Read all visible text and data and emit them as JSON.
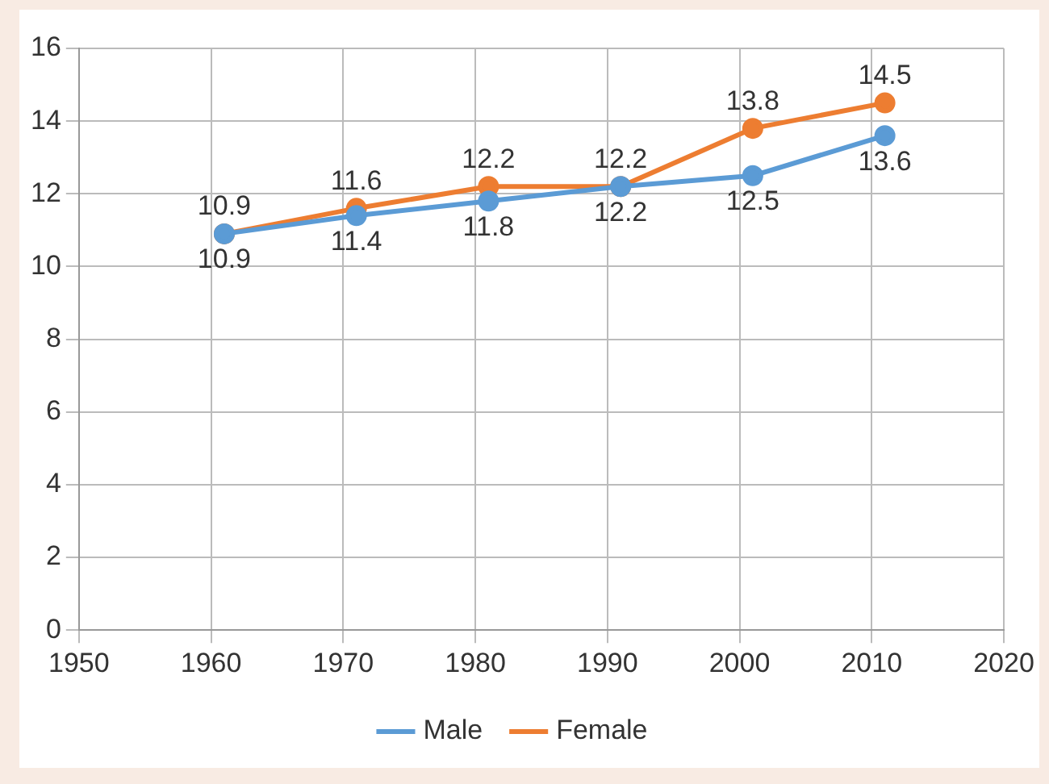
{
  "chart_data": {
    "type": "line",
    "x": [
      1961,
      1971,
      1981,
      1991,
      2001,
      2011
    ],
    "series": [
      {
        "name": "Male",
        "color": "#5b9bd5",
        "values": [
          10.9,
          11.4,
          11.8,
          12.2,
          12.5,
          13.6
        ]
      },
      {
        "name": "Female",
        "color": "#ed7d31",
        "values": [
          10.9,
          11.6,
          12.2,
          12.2,
          13.8,
          14.5
        ]
      }
    ],
    "xlim": [
      1950,
      2020
    ],
    "xticks": [
      1950,
      1960,
      1970,
      1980,
      1990,
      2000,
      2010,
      2020
    ],
    "ylim": [
      0,
      16
    ],
    "yticks": [
      0,
      2,
      4,
      6,
      8,
      10,
      12,
      14,
      16
    ],
    "grid": true,
    "legend": "bottom",
    "marker": "circle",
    "line_style": "solid",
    "data_labels": true
  }
}
